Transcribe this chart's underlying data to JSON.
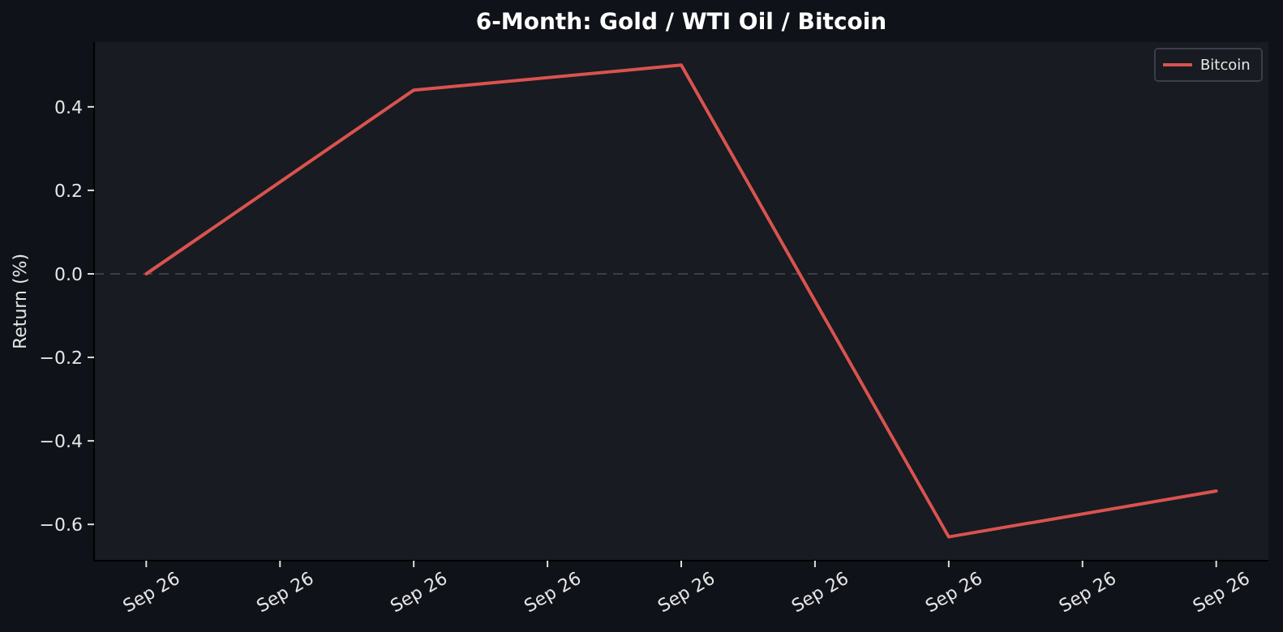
{
  "chart_data": {
    "type": "line",
    "title": "6-Month: Gold / WTI Oil / Bitcoin",
    "ylabel": "Return (%)",
    "categories": [
      "Sep 26",
      "Sep 26",
      "Sep 26",
      "Sep 26",
      "Sep 26",
      "Sep 26",
      "Sep 26",
      "Sep 26",
      "Sep 26"
    ],
    "series": [
      {
        "name": "Bitcoin",
        "color": "#d9534f",
        "values": [
          0,
          null,
          0.44,
          null,
          0.5,
          null,
          -0.63,
          null,
          -0.52
        ]
      }
    ],
    "ylim": [
      -0.687,
      0.555
    ],
    "yticks": [
      {
        "value": -0.6,
        "label": "−0.6"
      },
      {
        "value": -0.4,
        "label": "−0.4"
      },
      {
        "value": -0.2,
        "label": "−0.2"
      },
      {
        "value": 0,
        "label": "0.0"
      },
      {
        "value": 0.2,
        "label": "0.2"
      },
      {
        "value": 0.4,
        "label": "0.4"
      }
    ],
    "ref_lines": [
      {
        "axis": "y",
        "value": 0,
        "line_style": "dashed",
        "color": "#3a3f47"
      }
    ],
    "legend": "top right",
    "line_style": "solid",
    "marker": "none"
  }
}
